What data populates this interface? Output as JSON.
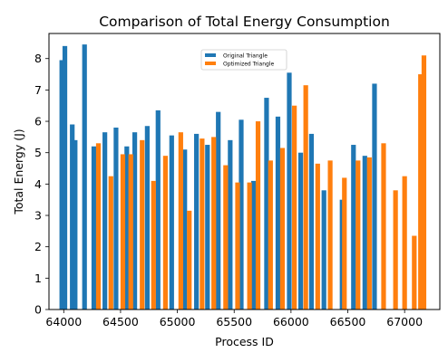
{
  "chart_data": {
    "type": "bar",
    "title": "Comparison of Total Energy Consumption",
    "xlabel": "Process ID",
    "ylabel": "Total Energy (J)",
    "xlim": [
      63870,
      67310
    ],
    "ylim": [
      0,
      8.8
    ],
    "xticks": [
      64000,
      64500,
      65000,
      65500,
      66000,
      66500,
      67000
    ],
    "yticks": [
      0,
      1,
      2,
      3,
      4,
      5,
      6,
      7,
      8
    ],
    "legend_position": "upper-center",
    "grid": false,
    "series": [
      {
        "name": "Original Triangle",
        "color": "#1f77b4",
        "points": [
          {
            "x": 63983,
            "y": 7.95
          },
          {
            "x": 64010,
            "y": 8.4
          },
          {
            "x": 64075,
            "y": 5.9
          },
          {
            "x": 64100,
            "y": 5.4
          },
          {
            "x": 64183,
            "y": 8.45
          },
          {
            "x": 64265,
            "y": 5.2
          },
          {
            "x": 64362,
            "y": 5.65
          },
          {
            "x": 64460,
            "y": 5.8
          },
          {
            "x": 64555,
            "y": 5.2
          },
          {
            "x": 64625,
            "y": 5.65
          },
          {
            "x": 64735,
            "y": 5.85
          },
          {
            "x": 64830,
            "y": 6.35
          },
          {
            "x": 64950,
            "y": 5.55
          },
          {
            "x": 65065,
            "y": 5.1
          },
          {
            "x": 65168,
            "y": 5.6
          },
          {
            "x": 65265,
            "y": 5.25
          },
          {
            "x": 65360,
            "y": 6.3
          },
          {
            "x": 65465,
            "y": 5.4
          },
          {
            "x": 65562,
            "y": 6.05
          },
          {
            "x": 65670,
            "y": 4.1
          },
          {
            "x": 65785,
            "y": 6.75
          },
          {
            "x": 65885,
            "y": 6.15
          },
          {
            "x": 65985,
            "y": 7.55
          },
          {
            "x": 66085,
            "y": 5.0
          },
          {
            "x": 66180,
            "y": 5.6
          },
          {
            "x": 66290,
            "y": 3.8
          },
          {
            "x": 66450,
            "y": 3.5
          },
          {
            "x": 66550,
            "y": 5.25
          },
          {
            "x": 66650,
            "y": 4.9
          },
          {
            "x": 66735,
            "y": 7.2
          }
        ]
      },
      {
        "name": "Optimized Triangle",
        "color": "#ff7f0e",
        "points": [
          {
            "x": 64305,
            "y": 5.3
          },
          {
            "x": 64415,
            "y": 4.25
          },
          {
            "x": 64520,
            "y": 4.95
          },
          {
            "x": 64590,
            "y": 4.95
          },
          {
            "x": 64690,
            "y": 5.4
          },
          {
            "x": 64790,
            "y": 4.1
          },
          {
            "x": 64895,
            "y": 4.9
          },
          {
            "x": 65030,
            "y": 5.65
          },
          {
            "x": 65105,
            "y": 3.15
          },
          {
            "x": 65218,
            "y": 5.45
          },
          {
            "x": 65320,
            "y": 5.5
          },
          {
            "x": 65425,
            "y": 4.6
          },
          {
            "x": 65530,
            "y": 4.05
          },
          {
            "x": 65635,
            "y": 4.05
          },
          {
            "x": 65710,
            "y": 6.0
          },
          {
            "x": 65820,
            "y": 4.75
          },
          {
            "x": 65925,
            "y": 5.15
          },
          {
            "x": 66030,
            "y": 6.5
          },
          {
            "x": 66130,
            "y": 7.15
          },
          {
            "x": 66235,
            "y": 4.65
          },
          {
            "x": 66345,
            "y": 4.75
          },
          {
            "x": 66470,
            "y": 4.2
          },
          {
            "x": 66590,
            "y": 4.75
          },
          {
            "x": 66690,
            "y": 4.85
          },
          {
            "x": 66815,
            "y": 5.3
          },
          {
            "x": 66920,
            "y": 3.8
          },
          {
            "x": 67000,
            "y": 4.25
          },
          {
            "x": 67085,
            "y": 2.35
          },
          {
            "x": 67140,
            "y": 7.5
          },
          {
            "x": 67170,
            "y": 8.1
          }
        ]
      }
    ]
  }
}
